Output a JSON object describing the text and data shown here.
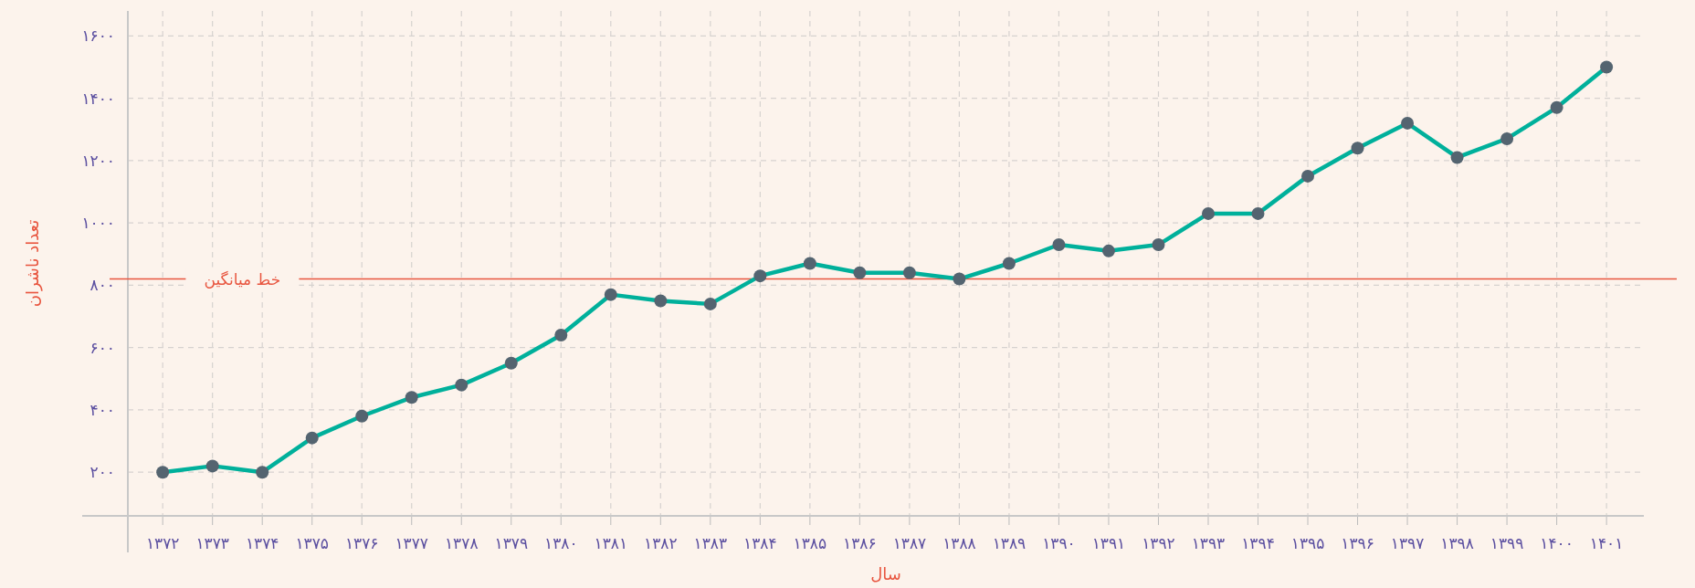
{
  "chart_data": {
    "type": "line",
    "xlabel": "سال",
    "ylabel": "تعداد ناشران",
    "categories": [
      "۱۳۷۲",
      "۱۳۷۳",
      "۱۳۷۴",
      "۱۳۷۵",
      "۱۳۷۶",
      "۱۳۷۷",
      "۱۳۷۸",
      "۱۳۷۹",
      "۱۳۸۰",
      "۱۳۸۱",
      "۱۳۸۲",
      "۱۳۸۳",
      "۱۳۸۴",
      "۱۳۸۵",
      "۱۳۸۶",
      "۱۳۸۷",
      "۱۳۸۸",
      "۱۳۸۹",
      "۱۳۹۰",
      "۱۳۹۱",
      "۱۳۹۲",
      "۱۳۹۳",
      "۱۳۹۴",
      "۱۳۹۵",
      "۱۳۹۶",
      "۱۳۹۷",
      "۱۳۹۸",
      "۱۳۹۹",
      "۱۴۰۰",
      "۱۴۰۱"
    ],
    "series": [
      {
        "color": "#00b09b",
        "values": [
          200,
          220,
          200,
          310,
          380,
          440,
          480,
          550,
          640,
          770,
          750,
          740,
          830,
          870,
          840,
          840,
          820,
          870,
          930,
          910,
          930,
          1030,
          1030,
          1150,
          1240,
          1320,
          1210,
          1270,
          1370,
          1500
        ]
      }
    ],
    "ylim": [
      60,
      1680
    ],
    "yticks": [
      {
        "value": 200,
        "label": "۲۰۰"
      },
      {
        "value": 400,
        "label": "۴۰۰"
      },
      {
        "value": 600,
        "label": "۶۰۰"
      },
      {
        "value": 800,
        "label": "۸۰۰"
      },
      {
        "value": 1000,
        "label": "۱۰۰۰"
      },
      {
        "value": 1200,
        "label": "۱۲۰۰"
      },
      {
        "value": 1400,
        "label": "۱۴۰۰"
      },
      {
        "value": 1600,
        "label": "۱۶۰۰"
      }
    ],
    "grid": true,
    "marker": "circle",
    "line_style": "solid",
    "ref_lines": [
      {
        "axis": "y",
        "value": 820,
        "label": "خط میانگین",
        "color": "#e8553f"
      }
    ]
  }
}
